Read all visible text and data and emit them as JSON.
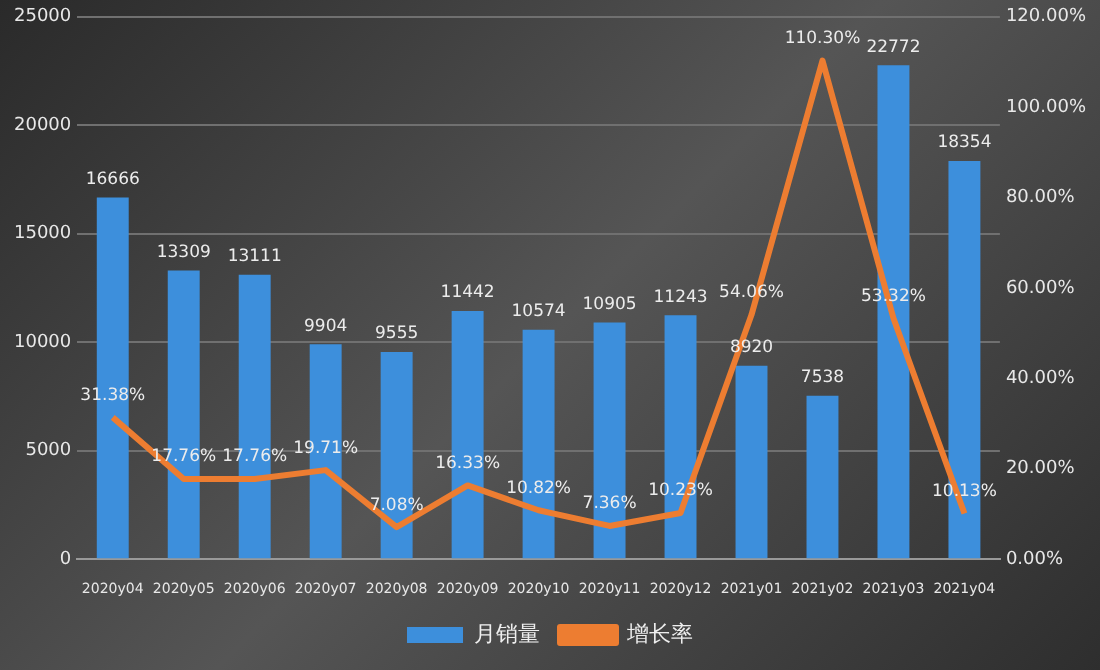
{
  "chart_data": {
    "type": "bar",
    "categories": [
      "2020y04",
      "2020y05",
      "2020y06",
      "2020y07",
      "2020y08",
      "2020y09",
      "2020y10",
      "2020y11",
      "2020y12",
      "2021y01",
      "2021y02",
      "2021y03",
      "2021y04"
    ],
    "series": [
      {
        "name": "月销量",
        "color": "#3d8fdc",
        "values": [
          16666,
          13309,
          13111,
          9904,
          9555,
          11442,
          10574,
          10905,
          11243,
          8920,
          7538,
          22772,
          18354
        ],
        "value_labels": [
          "16666",
          "13309",
          "13111",
          "9904",
          "9555",
          "11442",
          "10574",
          "10905",
          "11243",
          "8920",
          "7538",
          "22772",
          "18354"
        ]
      },
      {
        "name": "增长率",
        "type": "line",
        "axis": "y2",
        "color": "#ed7d31",
        "values": [
          31.38,
          17.76,
          17.76,
          19.71,
          7.08,
          16.33,
          10.82,
          7.36,
          10.23,
          54.06,
          110.3,
          53.32,
          10.13
        ],
        "value_labels": [
          "31.38%",
          "17.76%",
          "17.76%",
          "19.71%",
          "7.08%",
          "16.33%",
          "10.82%",
          "7.36%",
          "10.23%",
          "54.06%",
          "110.30%",
          "53.32%",
          "10.13%"
        ]
      }
    ],
    "ylim": [
      0,
      25000
    ],
    "yticks": [
      0,
      5000,
      10000,
      15000,
      20000,
      25000
    ],
    "y2lim": [
      0,
      120
    ],
    "y2ticks": [
      {
        "value": 0,
        "label": "0.00%"
      },
      {
        "value": 20,
        "label": "20.00%"
      },
      {
        "value": 40,
        "label": "40.00%"
      },
      {
        "value": 60,
        "label": "60.00%"
      },
      {
        "value": 80,
        "label": "80.00%"
      },
      {
        "value": 100,
        "label": "100.00%"
      },
      {
        "value": 120,
        "label": "120.00%"
      }
    ],
    "grid": "y",
    "legend": "bottom",
    "marker": "none",
    "line_style": "solid"
  }
}
